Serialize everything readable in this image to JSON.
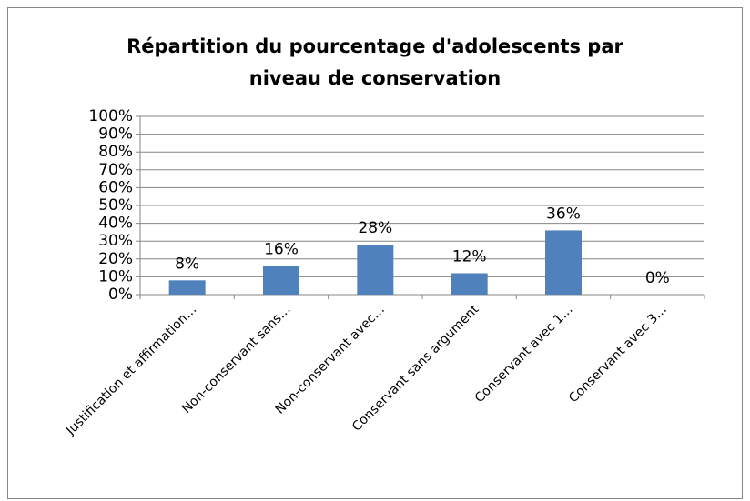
{
  "chart_data": {
    "type": "bar",
    "title": "Répartition du pourcentage d'adolescents par niveau de conservation",
    "categories": [
      "Justification et affirmation…",
      "Non-conservant sans…",
      "Non-conservant avec…",
      "Conservant sans argument",
      "Conservant avec 1…",
      "Conservant avec 3…"
    ],
    "values": [
      8,
      16,
      28,
      12,
      36,
      0
    ],
    "value_labels": [
      "8%",
      "16%",
      "28%",
      "12%",
      "36%",
      "0%"
    ],
    "color": "#4f81bd",
    "ylim": [
      0,
      100
    ],
    "yticks": [
      {
        "value": 0,
        "label": "0%"
      },
      {
        "value": 10,
        "label": "10%"
      },
      {
        "value": 20,
        "label": "20%"
      },
      {
        "value": 30,
        "label": "30%"
      },
      {
        "value": 40,
        "label": "40%"
      },
      {
        "value": 50,
        "label": "50%"
      },
      {
        "value": 60,
        "label": "60%"
      },
      {
        "value": 70,
        "label": "70%"
      },
      {
        "value": 80,
        "label": "80%"
      },
      {
        "value": 90,
        "label": "90%"
      },
      {
        "value": 100,
        "label": "100%"
      }
    ],
    "grid": true
  }
}
